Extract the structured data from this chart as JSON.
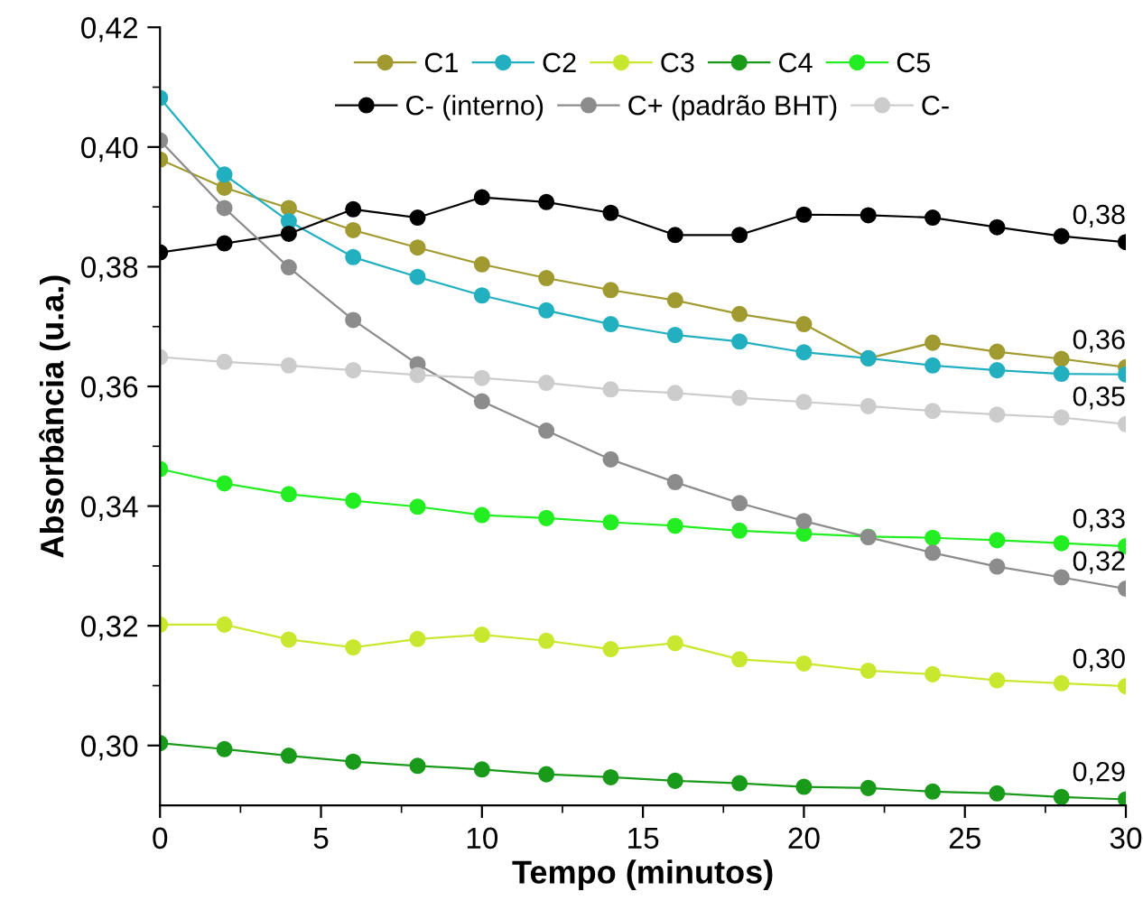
{
  "chart_data": {
    "type": "line",
    "xlabel": "Tempo (minutos)",
    "ylabel": "Absorbância (u.a.)",
    "x": [
      0,
      2,
      4,
      6,
      8,
      10,
      12,
      14,
      16,
      18,
      20,
      22,
      24,
      26,
      28,
      30
    ],
    "xlim": [
      0,
      30
    ],
    "xticks": [
      0,
      5,
      10,
      15,
      20,
      25,
      30
    ],
    "ylim": [
      0.29,
      0.42
    ],
    "yticks": [
      {
        "value": 0.3,
        "label": "0,30"
      },
      {
        "value": 0.32,
        "label": "0,32"
      },
      {
        "value": 0.34,
        "label": "0,34"
      },
      {
        "value": 0.36,
        "label": "0,36"
      },
      {
        "value": 0.38,
        "label": "0,38"
      },
      {
        "value": 0.4,
        "label": "0,40"
      },
      {
        "value": 0.42,
        "label": "0,42"
      }
    ],
    "marker": "circle",
    "line_style": "solid",
    "grid": false,
    "legend": "top",
    "series": [
      {
        "name": "C1",
        "color": "#a09a30",
        "values": [
          0.3979,
          0.3932,
          0.3898,
          0.3861,
          0.3832,
          0.3804,
          0.3781,
          0.3761,
          0.3744,
          0.3721,
          0.3704,
          0.3647,
          0.3673,
          0.3658,
          0.3646,
          0.3632
        ],
        "value_labels": [
          null,
          null,
          null,
          null,
          null,
          null,
          null,
          null,
          null,
          null,
          null,
          null,
          null,
          null,
          null,
          "0,36"
        ]
      },
      {
        "name": "C2",
        "color": "#22b0c0",
        "values": [
          0.4082,
          0.3954,
          0.3876,
          0.3816,
          0.3783,
          0.3752,
          0.3727,
          0.3704,
          0.3686,
          0.3675,
          0.3657,
          0.3647,
          0.3635,
          0.3627,
          0.3621,
          0.362
        ]
      },
      {
        "name": "C3",
        "color": "#c8e830",
        "values": [
          0.3202,
          0.3202,
          0.3177,
          0.3164,
          0.3178,
          0.3185,
          0.3175,
          0.3161,
          0.3171,
          0.3144,
          0.3137,
          0.3125,
          0.3119,
          0.3109,
          0.3104,
          0.3099
        ]
      },
      {
        "name": "C4",
        "color": "#1a9a1a",
        "values": [
          0.3004,
          0.2994,
          0.2983,
          0.2973,
          0.2966,
          0.296,
          0.2952,
          0.2947,
          0.2941,
          0.2937,
          0.2931,
          0.2929,
          0.2923,
          0.292,
          0.2914,
          0.291
        ],
        "value_labels": [
          null,
          null,
          null,
          null,
          null,
          null,
          null,
          null,
          null,
          null,
          null,
          null,
          null,
          null,
          null,
          "0,29"
        ]
      },
      {
        "name": "C5",
        "color": "#22ee22",
        "values": [
          0.3462,
          0.3438,
          0.342,
          0.3409,
          0.3399,
          0.3385,
          0.338,
          0.3373,
          0.3367,
          0.3359,
          0.3354,
          0.3349,
          0.3347,
          0.3343,
          0.3338,
          0.3333
        ],
        "value_labels": [
          null,
          null,
          null,
          null,
          null,
          null,
          null,
          null,
          null,
          null,
          null,
          null,
          null,
          null,
          null,
          "0,33"
        ]
      },
      {
        "name": "C- (interno)",
        "color": "#000000",
        "values": [
          0.3824,
          0.3839,
          0.3855,
          0.3896,
          0.3882,
          0.3916,
          0.3908,
          0.389,
          0.3853,
          0.3853,
          0.3887,
          0.3886,
          0.3882,
          0.3866,
          0.3851,
          0.3841
        ],
        "value_labels": [
          null,
          null,
          null,
          null,
          null,
          null,
          null,
          null,
          null,
          null,
          null,
          null,
          null,
          null,
          null,
          "0,38"
        ]
      },
      {
        "name": "C+ (padrão BHT)",
        "color": "#8c8c8c",
        "values": [
          0.4011,
          0.3898,
          0.3799,
          0.3711,
          0.3637,
          0.3575,
          0.3526,
          0.3478,
          0.344,
          0.3405,
          0.3375,
          0.3348,
          0.3322,
          0.3299,
          0.3281,
          0.3262
        ]
      },
      {
        "name": "C-",
        "color": "#cccccc",
        "values": [
          0.3649,
          0.3641,
          0.3635,
          0.3627,
          0.3619,
          0.3614,
          0.3606,
          0.3595,
          0.3589,
          0.3581,
          0.3574,
          0.3567,
          0.3559,
          0.3553,
          0.3548,
          0.3537
        ],
        "value_labels": [
          null,
          null,
          null,
          null,
          null,
          null,
          null,
          null,
          null,
          null,
          null,
          null,
          null,
          null,
          null,
          "0,35"
        ]
      }
    ],
    "annotations": [
      {
        "text": "0,32",
        "x": 30,
        "y": 0.3262
      },
      {
        "text": "0,30",
        "x": 30,
        "y": 0.3099
      }
    ]
  }
}
